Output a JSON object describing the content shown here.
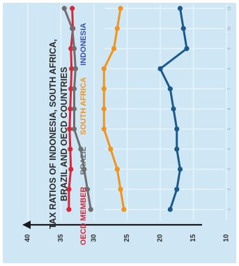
{
  "chart_data": {
    "type": "line",
    "title": "TAX RATIOS OF INDONESIA, SOUTH AFRICA, BRAZIL AND OECD COUNTRIES",
    "title_lines": [
      "TAX RATIOS OF INDONESIA, SOUTH AFRICA,",
      "BRAZIL AND OECD COUNTRIES"
    ],
    "orientation": "rotated 90 degrees counter-clockwise (x runs bottom-to-top, y axis along the bottom)",
    "xlabel": "",
    "ylabel": "",
    "ylim": [
      10,
      40
    ],
    "yticks": [
      40,
      35,
      30,
      25,
      20,
      15,
      10
    ],
    "grid": true,
    "legend_position": "top",
    "x": [
      1,
      2,
      3,
      4,
      5,
      6,
      7,
      8,
      9,
      10,
      11
    ],
    "series": [
      {
        "name": "OECD MEMBER",
        "color": "#d62839",
        "values": [
          33.8,
          33.8,
          33.5,
          33.6,
          33.7,
          33.6,
          33.5,
          33.4,
          33.5,
          33.2,
          33.3
        ]
      },
      {
        "name": "BRAZIL",
        "color": "#6e6e6e",
        "values": [
          30.5,
          31.0,
          31.5,
          32.0,
          33.0,
          33.0,
          33.0,
          32.8,
          33.0,
          33.3,
          34.5
        ]
      },
      {
        "name": "SOUTH AFRICA",
        "color": "#f0941f",
        "values": [
          25.5,
          26.0,
          26.5,
          27.5,
          28.5,
          28.5,
          28.5,
          28.5,
          27.0,
          26.5,
          26.0
        ]
      },
      {
        "name": "INDONESIA",
        "color": "#1b5a8a",
        "values": [
          18.5,
          17.5,
          17.0,
          17.5,
          17.5,
          18.0,
          18.5,
          20.0,
          16.0,
          16.5,
          17.0
        ]
      }
    ]
  }
}
